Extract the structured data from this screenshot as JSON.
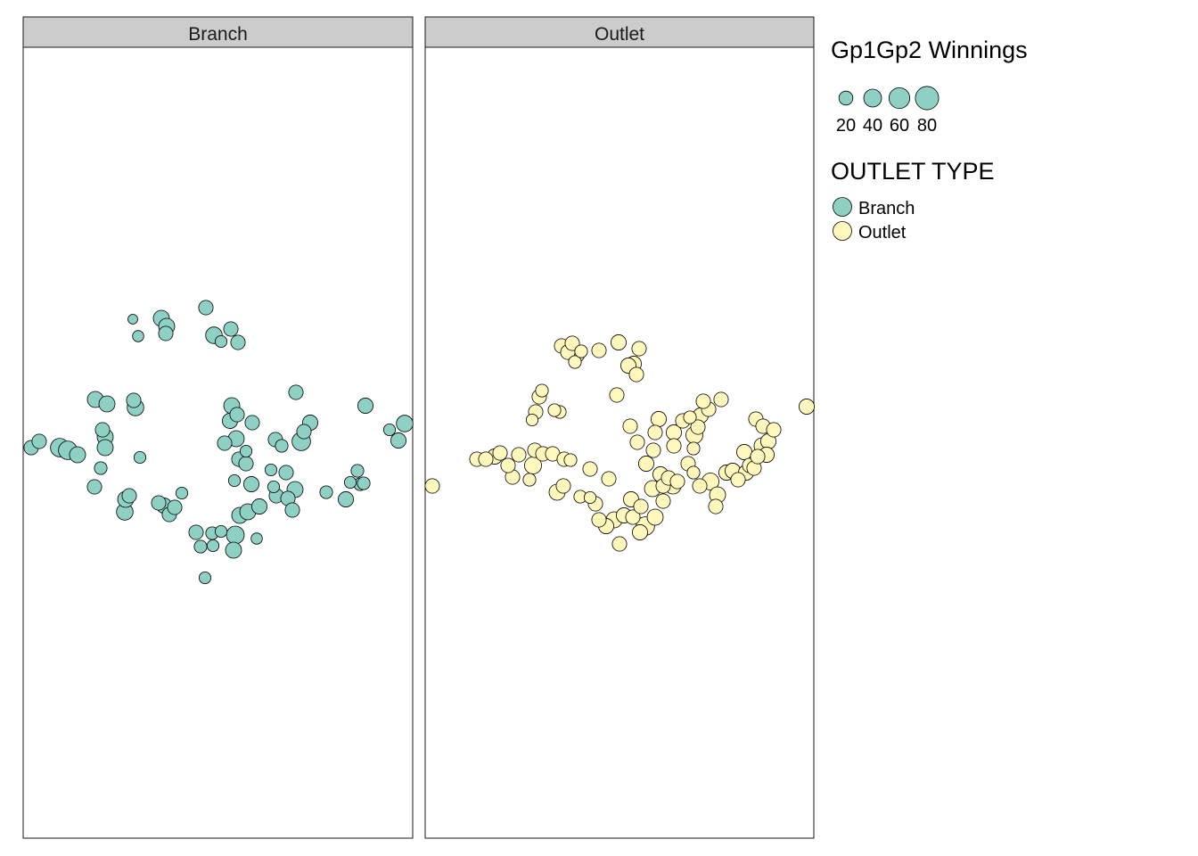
{
  "chart_data": {
    "type": "scatter",
    "encoding": "bubble map faceted by outlet type; marker area proportional to Gp1Gp2 Winnings",
    "facets": [
      {
        "label": "Branch",
        "color": "#8ED0C3",
        "points": [
          [
            35,
            502,
            22
          ],
          [
            44,
            495,
            22
          ],
          [
            67,
            502,
            44
          ],
          [
            76,
            505,
            44
          ],
          [
            87,
            510,
            30
          ],
          [
            107,
            448,
            30
          ],
          [
            120,
            453,
            30
          ],
          [
            115,
            482,
            22
          ],
          [
            118,
            490,
            30
          ],
          [
            118,
            502,
            30
          ],
          [
            113,
            525,
            15
          ],
          [
            106,
            546,
            22
          ],
          [
            140,
            574,
            33
          ],
          [
            141,
            560,
            30
          ],
          [
            145,
            556,
            22
          ],
          [
            152,
            457,
            33
          ],
          [
            150,
            449,
            22
          ],
          [
            157,
            513,
            12
          ],
          [
            149,
            358,
            6
          ],
          [
            155,
            377,
            10
          ],
          [
            181,
            357,
            30
          ],
          [
            187,
            366,
            30
          ],
          [
            186,
            374,
            22
          ],
          [
            178,
            564,
            22
          ],
          [
            184,
            567,
            26
          ],
          [
            190,
            577,
            22
          ],
          [
            196,
            569,
            22
          ],
          [
            204,
            553,
            12
          ],
          [
            231,
            345,
            22
          ],
          [
            240,
            376,
            33
          ],
          [
            248,
            383,
            12
          ],
          [
            259,
            369,
            22
          ],
          [
            267,
            384,
            22
          ],
          [
            220,
            597,
            22
          ],
          [
            225,
            613,
            15
          ],
          [
            230,
            648,
            12
          ],
          [
            238,
            598,
            15
          ],
          [
            248,
            596,
            12
          ],
          [
            239,
            612,
            12
          ],
          [
            264,
            600,
            40
          ],
          [
            262,
            617,
            30
          ],
          [
            263,
            539,
            12
          ],
          [
            260,
            455,
            30
          ],
          [
            266,
            465,
            22
          ],
          [
            258,
            472,
            26
          ],
          [
            265,
            492,
            30
          ],
          [
            252,
            497,
            22
          ],
          [
            268,
            515,
            22
          ],
          [
            276,
            520,
            22
          ],
          [
            276,
            506,
            12
          ],
          [
            282,
            543,
            26
          ],
          [
            283,
            474,
            22
          ],
          [
            269,
            578,
            30
          ],
          [
            278,
            574,
            30
          ],
          [
            291,
            568,
            26
          ],
          [
            288,
            604,
            10
          ],
          [
            304,
            527,
            12
          ],
          [
            310,
            556,
            22
          ],
          [
            307,
            546,
            12
          ],
          [
            316,
            500,
            15
          ],
          [
            309,
            493,
            22
          ],
          [
            321,
            530,
            22
          ],
          [
            323,
            559,
            22
          ],
          [
            328,
            572,
            22
          ],
          [
            331,
            549,
            30
          ],
          [
            332,
            440,
            22
          ],
          [
            338,
            495,
            44
          ],
          [
            341,
            484,
            22
          ],
          [
            348,
            474,
            26
          ],
          [
            366,
            552,
            15
          ],
          [
            388,
            560,
            26
          ],
          [
            393,
            541,
            12
          ],
          [
            401,
            528,
            15
          ],
          [
            404,
            543,
            15
          ],
          [
            408,
            542,
            15
          ],
          [
            410,
            455,
            26
          ],
          [
            437,
            482,
            12
          ],
          [
            447,
            494,
            26
          ],
          [
            454,
            475,
            33
          ]
        ]
      },
      {
        "label": "Outlet",
        "color": "#FFF7BC",
        "points": [
          [
            485,
            545,
            22
          ],
          [
            535,
            515,
            22
          ],
          [
            545,
            515,
            22
          ],
          [
            555,
            512,
            26
          ],
          [
            561,
            508,
            22
          ],
          [
            575,
            535,
            22
          ],
          [
            570,
            522,
            22
          ],
          [
            582,
            510,
            22
          ],
          [
            598,
            522,
            35
          ],
          [
            594,
            538,
            15
          ],
          [
            597,
            471,
            12
          ],
          [
            601,
            462,
            22
          ],
          [
            605,
            445,
            22
          ],
          [
            608,
            438,
            15
          ],
          [
            600,
            505,
            22
          ],
          [
            609,
            509,
            22
          ],
          [
            620,
            509,
            22
          ],
          [
            628,
            462,
            15
          ],
          [
            622,
            460,
            15
          ],
          [
            625,
            552,
            30
          ],
          [
            632,
            545,
            22
          ],
          [
            630,
            388,
            22
          ],
          [
            637,
            395,
            22
          ],
          [
            645,
            406,
            15
          ],
          [
            647,
            398,
            26
          ],
          [
            652,
            394,
            15
          ],
          [
            642,
            385,
            22
          ],
          [
            672,
            393,
            22
          ],
          [
            694,
            384,
            26
          ],
          [
            717,
            391,
            22
          ],
          [
            711,
            408,
            26
          ],
          [
            714,
            420,
            22
          ],
          [
            705,
            410,
            26
          ],
          [
            692,
            443,
            22
          ],
          [
            633,
            515,
            22
          ],
          [
            640,
            516,
            15
          ],
          [
            662,
            526,
            22
          ],
          [
            651,
            557,
            15
          ],
          [
            662,
            558,
            12
          ],
          [
            668,
            565,
            22
          ],
          [
            683,
            537,
            22
          ],
          [
            672,
            583,
            22
          ],
          [
            680,
            590,
            26
          ],
          [
            689,
            583,
            30
          ],
          [
            695,
            610,
            22
          ],
          [
            700,
            578,
            26
          ],
          [
            710,
            580,
            22
          ],
          [
            724,
            590,
            44
          ],
          [
            718,
            597,
            26
          ],
          [
            735,
            580,
            30
          ],
          [
            739,
            470,
            26
          ],
          [
            735,
            485,
            22
          ],
          [
            733,
            505,
            22
          ],
          [
            725,
            520,
            26
          ],
          [
            715,
            496,
            22
          ],
          [
            707,
            478,
            22
          ],
          [
            708,
            560,
            26
          ],
          [
            719,
            568,
            22
          ],
          [
            732,
            548,
            30
          ],
          [
            744,
            545,
            22
          ],
          [
            750,
            536,
            22
          ],
          [
            741,
            532,
            26
          ],
          [
            755,
            545,
            30
          ],
          [
            744,
            562,
            22
          ],
          [
            760,
            540,
            22
          ],
          [
            772,
            520,
            22
          ],
          [
            778,
            530,
            15
          ],
          [
            785,
            545,
            22
          ],
          [
            797,
            540,
            35
          ],
          [
            805,
            555,
            30
          ],
          [
            803,
            568,
            22
          ],
          [
            779,
            488,
            35
          ],
          [
            783,
            479,
            22
          ],
          [
            786,
            466,
            26
          ],
          [
            795,
            459,
            22
          ],
          [
            789,
            450,
            22
          ],
          [
            809,
            448,
            22
          ],
          [
            756,
            485,
            26
          ],
          [
            756,
            500,
            22
          ],
          [
            766,
            472,
            22
          ],
          [
            774,
            468,
            15
          ],
          [
            778,
            503,
            15
          ],
          [
            815,
            530,
            26
          ],
          [
            822,
            528,
            26
          ],
          [
            828,
            538,
            22
          ],
          [
            837,
            530,
            26
          ],
          [
            841,
            522,
            22
          ],
          [
            846,
            525,
            22
          ],
          [
            848,
            470,
            22
          ],
          [
            856,
            478,
            22
          ],
          [
            868,
            482,
            22
          ],
          [
            862,
            495,
            26
          ],
          [
            855,
            500,
            30
          ],
          [
            860,
            510,
            26
          ],
          [
            850,
            512,
            22
          ],
          [
            835,
            507,
            26
          ],
          [
            905,
            456,
            26
          ]
        ]
      }
    ],
    "legend_size": {
      "title": "Gp1Gp2 Winnings",
      "values": [
        20,
        40,
        60,
        80
      ]
    },
    "legend_color": {
      "title": "OUTLET TYPE",
      "entries": [
        {
          "label": "Branch",
          "color": "#8ED0C3"
        },
        {
          "label": "Outlet",
          "color": "#FFF7BC"
        }
      ]
    },
    "strip_fill": "#CCCCCC",
    "marker_stroke": "#000000",
    "grid": false,
    "legend_position": "right"
  }
}
